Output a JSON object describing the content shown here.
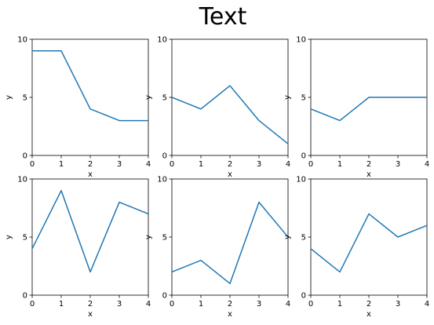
{
  "figure": {
    "suptitle": "Text",
    "line_color": "#1f77b4"
  },
  "chart_data": [
    {
      "type": "line",
      "x": [
        0,
        1,
        2,
        3,
        4
      ],
      "y": [
        9,
        9,
        4,
        3,
        3
      ],
      "xlabel": "x",
      "ylabel": "y",
      "xlim": [
        0,
        4
      ],
      "ylim": [
        0,
        10
      ],
      "xticks": [
        "0",
        "1",
        "2",
        "3",
        "4"
      ],
      "yticks": [
        "0",
        "5",
        "10"
      ]
    },
    {
      "type": "line",
      "x": [
        0,
        1,
        2,
        3,
        4
      ],
      "y": [
        5,
        4,
        6,
        3,
        1
      ],
      "xlabel": "x",
      "ylabel": "y",
      "xlim": [
        0,
        4
      ],
      "ylim": [
        0,
        10
      ],
      "xticks": [
        "0",
        "1",
        "2",
        "3",
        "4"
      ],
      "yticks": [
        "0",
        "5",
        "10"
      ]
    },
    {
      "type": "line",
      "x": [
        0,
        1,
        2,
        3,
        4
      ],
      "y": [
        4,
        3,
        5,
        5,
        5
      ],
      "xlabel": "x",
      "ylabel": "y",
      "xlim": [
        0,
        4
      ],
      "ylim": [
        0,
        10
      ],
      "xticks": [
        "0",
        "1",
        "2",
        "3",
        "4"
      ],
      "yticks": [
        "0",
        "5",
        "10"
      ]
    },
    {
      "type": "line",
      "x": [
        0,
        1,
        2,
        3,
        4
      ],
      "y": [
        4,
        9,
        2,
        8,
        7
      ],
      "xlabel": "x",
      "ylabel": "y",
      "xlim": [
        0,
        4
      ],
      "ylim": [
        0,
        10
      ],
      "xticks": [
        "0",
        "1",
        "2",
        "3",
        "4"
      ],
      "yticks": [
        "0",
        "5",
        "10"
      ]
    },
    {
      "type": "line",
      "x": [
        0,
        1,
        2,
        3,
        4
      ],
      "y": [
        2,
        3,
        1,
        8,
        5
      ],
      "xlabel": "x",
      "ylabel": "y",
      "xlim": [
        0,
        4
      ],
      "ylim": [
        0,
        10
      ],
      "xticks": [
        "0",
        "1",
        "2",
        "3",
        "4"
      ],
      "yticks": [
        "0",
        "5",
        "10"
      ]
    },
    {
      "type": "line",
      "x": [
        0,
        1,
        2,
        3,
        4
      ],
      "y": [
        4,
        2,
        7,
        5,
        6
      ],
      "xlabel": "x",
      "ylabel": "y",
      "xlim": [
        0,
        4
      ],
      "ylim": [
        0,
        10
      ],
      "xticks": [
        "0",
        "1",
        "2",
        "3",
        "4"
      ],
      "yticks": [
        "0",
        "5",
        "10"
      ]
    }
  ]
}
